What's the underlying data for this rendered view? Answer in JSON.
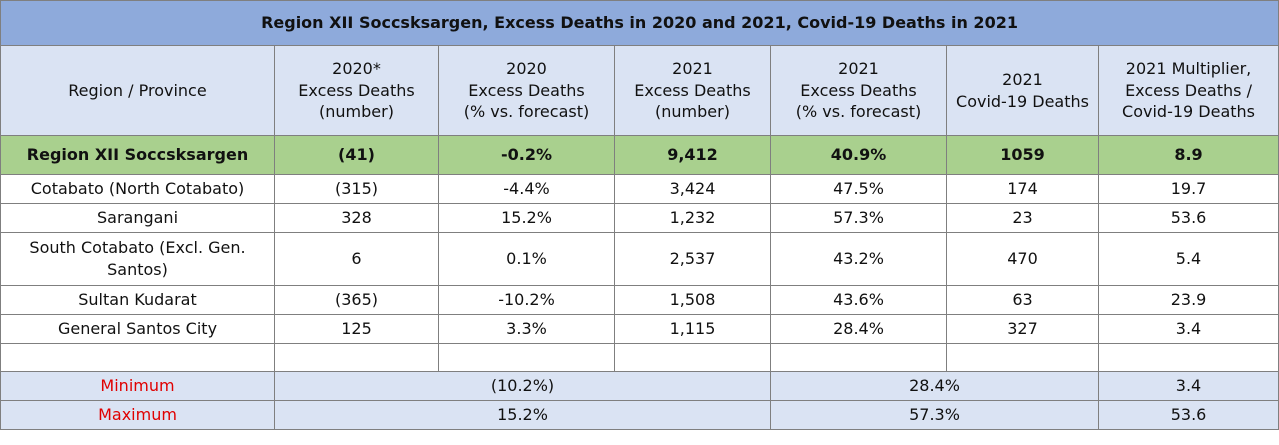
{
  "title": "Region XII Soccsksargen, Excess Deaths in 2020 and 2021, Covid-19 Deaths in 2021",
  "headers": [
    [
      "Region / Province"
    ],
    [
      "2020*",
      "Excess Deaths",
      "(number)"
    ],
    [
      "2020",
      "Excess Deaths",
      "(% vs. forecast)"
    ],
    [
      "2021",
      "Excess Deaths",
      "(number)"
    ],
    [
      "2021",
      "Excess Deaths",
      "(% vs. forecast)"
    ],
    [
      "2021",
      "Covid-19 Deaths"
    ],
    [
      "2021 Multiplier,",
      "Excess Deaths /",
      "Covid-19 Deaths"
    ]
  ],
  "summary": [
    "Region XII Soccsksargen",
    "(41)",
    "-0.2%",
    "9,412",
    "40.9%",
    "1059",
    "8.9"
  ],
  "rows": [
    [
      "Cotabato (North Cotabato)",
      "(315)",
      "-4.4%",
      "3,424",
      "47.5%",
      "174",
      "19.7"
    ],
    [
      "Sarangani",
      "328",
      "15.2%",
      "1,232",
      "57.3%",
      "23",
      "53.6"
    ],
    [
      "South Cotabato (Excl. Gen. Santos)",
      "6",
      "0.1%",
      "2,537",
      "43.2%",
      "470",
      "5.4"
    ],
    [
      "Sultan Kudarat",
      "(365)",
      "-10.2%",
      "1,508",
      "43.6%",
      "63",
      "23.9"
    ],
    [
      "General Santos City",
      "125",
      "3.3%",
      "1,115",
      "28.4%",
      "327",
      "3.4"
    ]
  ],
  "stats": [
    {
      "label": "Minimum",
      "pct2020": "(10.2%)",
      "pct2021": "28.4%",
      "multiplier": "3.4"
    },
    {
      "label": "Maximum",
      "pct2020": "15.2%",
      "pct2021": "57.3%",
      "multiplier": "53.6"
    }
  ],
  "colors": {
    "title_bg": "#8eaadb",
    "header_bg": "#dae3f3",
    "summary_bg": "#a9d08e",
    "stat_label": "#e00000"
  }
}
